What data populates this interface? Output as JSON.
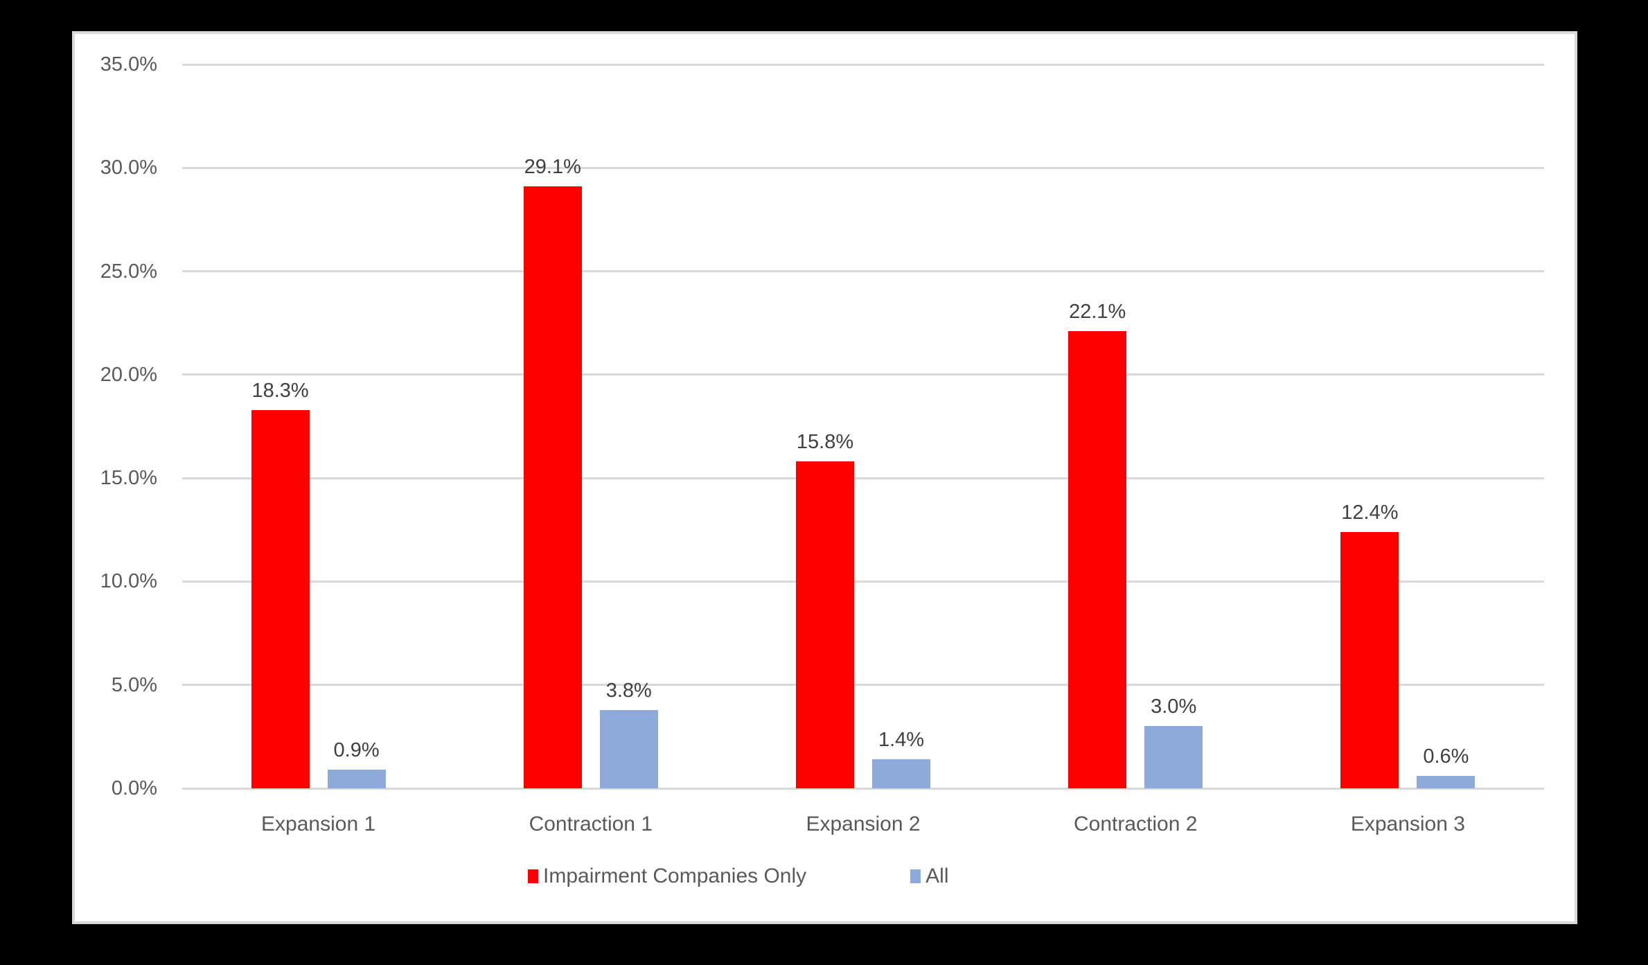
{
  "chart_data": {
    "type": "bar",
    "title": "",
    "xlabel": "",
    "ylabel": "",
    "categories": [
      "Expansion 1",
      "Contraction 1",
      "Expansion 2",
      "Contraction 2",
      "Expansion 3"
    ],
    "series": [
      {
        "name": "Impairment Companies Only",
        "color": "#ff0000",
        "values": [
          18.3,
          29.1,
          15.8,
          22.1,
          12.4
        ],
        "labels": [
          "18.3%",
          "29.1%",
          "15.8%",
          "22.1%",
          "12.4%"
        ]
      },
      {
        "name": "All",
        "color": "#8eaadb",
        "values": [
          0.9,
          3.8,
          1.4,
          3.0,
          0.6
        ],
        "labels": [
          "0.9%",
          "3.8%",
          "1.4%",
          "3.0%",
          "0.6%"
        ]
      }
    ],
    "ylim": [
      0,
      35
    ],
    "yticks": [
      0,
      5,
      10,
      15,
      20,
      25,
      30,
      35
    ],
    "ytick_labels": [
      "0.0%",
      "5.0%",
      "10.0%",
      "15.0%",
      "20.0%",
      "25.0%",
      "30.0%",
      "35.0%"
    ],
    "grid": true,
    "legend_position": "bottom",
    "data_labels": true
  },
  "colors": {
    "background": "#000000",
    "panel": "#ffffff",
    "panel_border": "#d9d9d9",
    "gridline": "#d9d9d9",
    "axis_text": "#595959",
    "data_label_text": "#404040"
  }
}
